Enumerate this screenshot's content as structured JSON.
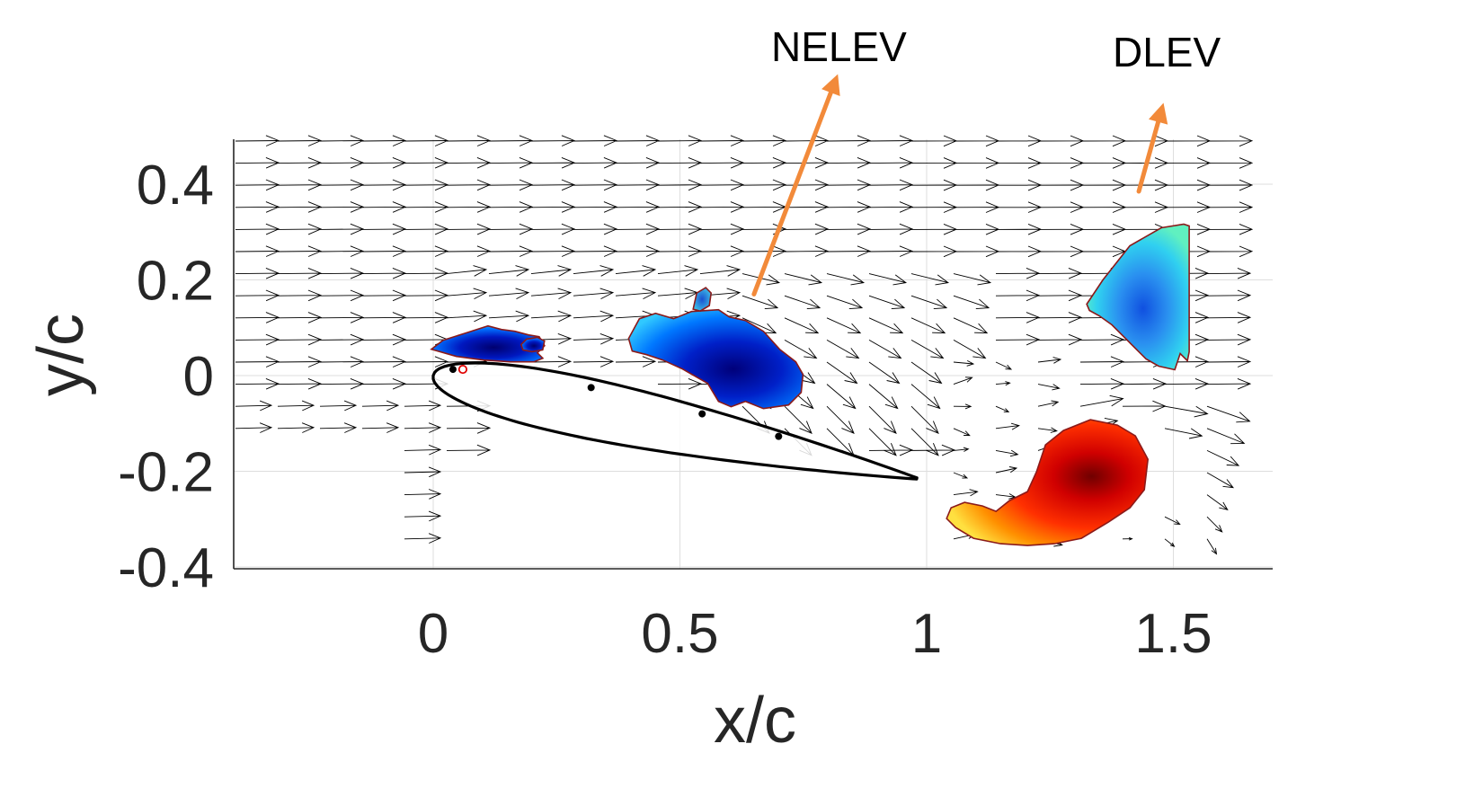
{
  "chart_data": {
    "type": "quiver",
    "title": "",
    "xlabel": "x/c",
    "ylabel": "y/c",
    "xlim": [
      -0.4,
      1.7
    ],
    "ylim": [
      -0.4,
      0.5
    ],
    "xticks": [
      0,
      0.5,
      1,
      1.5
    ],
    "xtick_labels": [
      "0",
      "0.5",
      "1",
      "1.5"
    ],
    "yticks": [
      -0.4,
      -0.2,
      0,
      0.2,
      0.4
    ],
    "ytick_labels": [
      "-0.4",
      "-0.2",
      "0",
      "0.2",
      "0.4"
    ],
    "grid": true,
    "airfoil": {
      "leading_edge": [
        0.0,
        0.0
      ],
      "trailing_edge": [
        0.98,
        -0.215
      ],
      "surface_markers": [
        {
          "x": 0.04,
          "y": 0.013,
          "color": "#000000",
          "shape": "dot"
        },
        {
          "x": 0.06,
          "y": 0.013,
          "color": "#e00000",
          "shape": "ring"
        },
        {
          "x": 0.32,
          "y": -0.025,
          "color": "#000000",
          "shape": "dot"
        },
        {
          "x": 0.545,
          "y": -0.08,
          "color": "#000000",
          "shape": "dot"
        },
        {
          "x": 0.7,
          "y": -0.127,
          "color": "#000000",
          "shape": "dot"
        }
      ]
    },
    "vorticity_regions": [
      {
        "name": "leading-edge-vortex-blob",
        "sign": "negative",
        "center": [
          0.12,
          0.07
        ]
      },
      {
        "name": "nelev-blob",
        "sign": "negative",
        "center": [
          0.56,
          0.04
        ]
      },
      {
        "name": "small-blob",
        "sign": "negative",
        "center": [
          0.2,
          0.065
        ]
      },
      {
        "name": "dlev-blob",
        "sign": "negative",
        "center": [
          1.43,
          0.2
        ]
      },
      {
        "name": "trailing-edge-vortex-blob",
        "sign": "positive",
        "center": [
          1.35,
          -0.22
        ]
      }
    ],
    "colors": {
      "negative_vorticity": [
        "#00008f",
        "#0040ff",
        "#00c0ff",
        "#40ffc0"
      ],
      "positive_vorticity": [
        "#7f0000",
        "#ff0000",
        "#ff8000",
        "#ffff40"
      ],
      "annotation_arrow": "#f28a3a",
      "blob_outline": "#8b1a1a",
      "vector": "#000000"
    },
    "annotations": [
      {
        "text": "NELEV",
        "arrow_from": [
          0.65,
          0.17
        ],
        "arrow_to": [
          0.82,
          0.63
        ]
      },
      {
        "text": "DLEV",
        "arrow_from": [
          1.43,
          0.385
        ],
        "arrow_to": [
          1.48,
          0.57
        ]
      }
    ]
  }
}
